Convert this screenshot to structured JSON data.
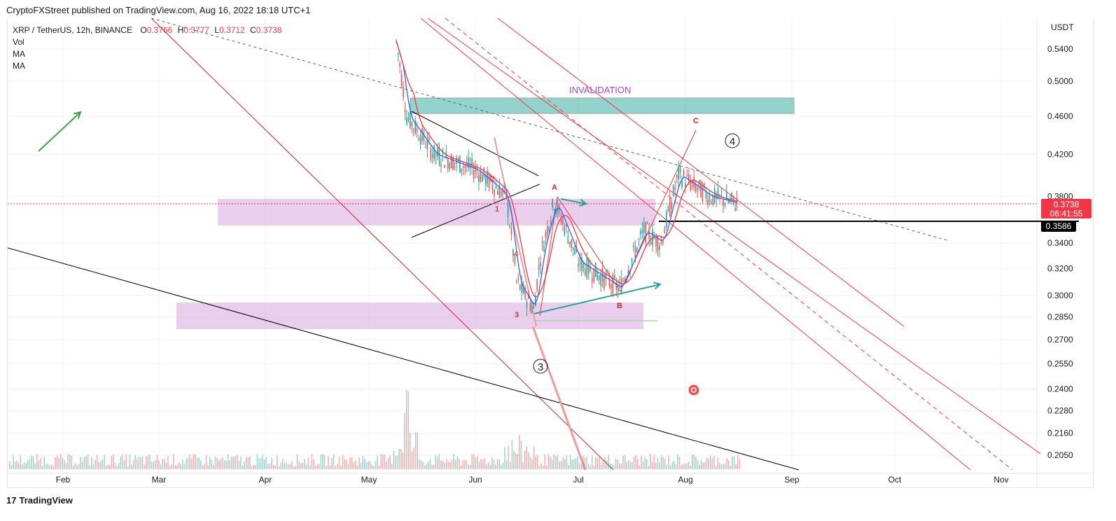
{
  "header": {
    "credit": "CryptoFXStreet published on TradingView.com, Aug 16, 2022 18:18 UTC+1"
  },
  "legend": {
    "symbol": "XRP / TetherUS, 12h, BINANCE",
    "o_label": "O",
    "o_value": "0.3766",
    "h_label": "H",
    "h_value": "0.3777",
    "l_label": "L",
    "l_value": "0.3712",
    "c_label": "C",
    "c_value": "0.3738",
    "vol_label": "Vol",
    "ma1_label": "MA",
    "ma2_label": "MA"
  },
  "brand": {
    "logo_text": "17",
    "name": "TradingView"
  },
  "colors": {
    "up": "#26a69a",
    "down": "#ef5350",
    "ma_blue": "#2962ff",
    "ma_red": "#f23645",
    "zone_purple": "#ce93d8",
    "zone_teal": "#4db6ac",
    "price_tag": "#f23645"
  },
  "chart_data": {
    "type": "candlestick",
    "title": "XRP / TetherUS, 12h, BINANCE",
    "currency_label": "USDT",
    "y_ticks": [
      "0.5400",
      "0.5000",
      "0.4600",
      "0.4200",
      "0.3800",
      "0.3400",
      "0.3200",
      "0.3000",
      "0.2850",
      "0.2700",
      "0.2550",
      "0.2400",
      "0.2280",
      "0.2160",
      "0.2050"
    ],
    "x_ticks": [
      "Feb",
      "Mar",
      "Apr",
      "May",
      "Jun",
      "Jul",
      "Aug",
      "Sep",
      "Oct",
      "Nov"
    ],
    "y_scale": "log",
    "ylim": [
      0.195,
      0.58
    ],
    "last_price": "0.3738",
    "countdown": "06:41:55",
    "level_price": "0.3586",
    "ohlc_points": [
      {
        "date": "2022-05-09",
        "close": 0.55
      },
      {
        "date": "2022-05-12",
        "close": 0.46
      },
      {
        "date": "2022-05-20",
        "close": 0.42
      },
      {
        "date": "2022-06-01",
        "close": 0.405
      },
      {
        "date": "2022-06-10",
        "close": 0.38
      },
      {
        "date": "2022-06-13",
        "close": 0.31
      },
      {
        "date": "2022-06-18",
        "close": 0.29
      },
      {
        "date": "2022-06-20",
        "close": 0.33
      },
      {
        "date": "2022-06-24",
        "close": 0.375
      },
      {
        "date": "2022-07-01",
        "close": 0.325
      },
      {
        "date": "2022-07-13",
        "close": 0.305
      },
      {
        "date": "2022-07-20",
        "close": 0.35
      },
      {
        "date": "2022-07-25",
        "close": 0.34
      },
      {
        "date": "2022-07-30",
        "close": 0.4
      },
      {
        "date": "2022-08-08",
        "close": 0.38
      },
      {
        "date": "2022-08-16",
        "close": 0.3738
      }
    ],
    "annotations": [
      {
        "text": "INVALIDATION",
        "type": "zone-label"
      },
      {
        "text": "A",
        "type": "wave"
      },
      {
        "text": "B",
        "type": "wave"
      },
      {
        "text": "C",
        "type": "wave"
      },
      {
        "text": "1",
        "type": "wave"
      },
      {
        "text": "2",
        "type": "wave"
      },
      {
        "text": "3",
        "type": "wave"
      },
      {
        "text": "4",
        "type": "wave"
      },
      {
        "text": "3",
        "type": "major-wave"
      },
      {
        "text": "4",
        "type": "major-wave"
      }
    ],
    "grid": true,
    "legend_placement": "top-left"
  }
}
